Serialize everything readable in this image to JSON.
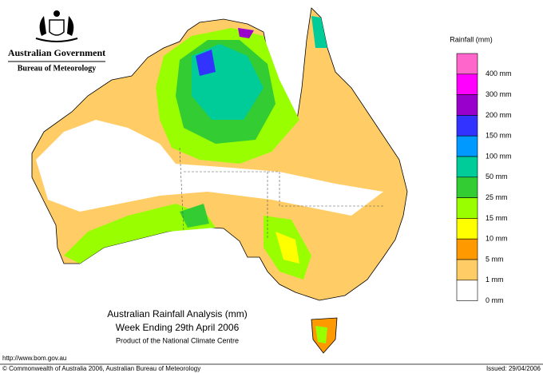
{
  "header": {
    "agency": "Australian Government",
    "bureau": "Bureau of Meteorology"
  },
  "legend": {
    "title": "Rainfall (mm)",
    "colors": [
      "#ff66cc",
      "#ff00ff",
      "#9900cc",
      "#3333ff",
      "#0099ff",
      "#00cc99",
      "#33cc33",
      "#99ff00",
      "#ffff00",
      "#ff9900",
      "#ffcc66",
      "#ffffff"
    ],
    "labels": [
      "400 mm",
      "300 mm",
      "200 mm",
      "150 mm",
      "100 mm",
      "50 mm",
      "25 mm",
      "15 mm",
      "10 mm",
      "5 mm",
      "1 mm",
      "0 mm"
    ]
  },
  "map_title": {
    "line1": "Australian Rainfall Analysis (mm)",
    "line2": "Week Ending 29th April 2006",
    "line3": "Product of the National Climate Centre"
  },
  "footer": {
    "url": "http://www.bom.gov.au",
    "copyright": "© Commonwealth of Australia 2006, Australian Bureau of Meteorology",
    "issued": "Issued: 29/04/2006"
  }
}
